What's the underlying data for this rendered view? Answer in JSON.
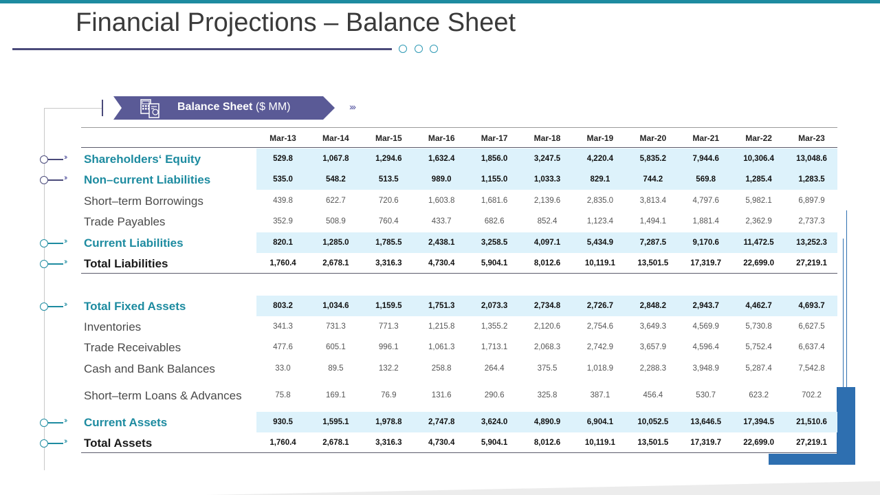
{
  "title": "Financial Projections – Balance Sheet",
  "banner": {
    "bold": "Balance Sheet",
    "rest": " ($ MM)",
    "icon": "calculator-document-icon"
  },
  "colors": {
    "accent": "#1d8ba0",
    "navy": "#5a5a96",
    "highlight_row": "#ddf2fb",
    "side_block": "#2e6fb0"
  },
  "columns": [
    "Mar-13",
    "Mar-14",
    "Mar-15",
    "Mar-16",
    "Mar-17",
    "Mar-18",
    "Mar-19",
    "Mar-20",
    "Mar-21",
    "Mar-22",
    "Mar-23"
  ],
  "rows": [
    {
      "label": "Shareholders‘ Equity",
      "style": "highlight",
      "values": [
        "529.8",
        "1,067.8",
        "1,294.6",
        "1,632.4",
        "1,856.0",
        "3,247.5",
        "4,220.4",
        "5,835.2",
        "7,944.6",
        "10,306.4",
        "13,048.6"
      ]
    },
    {
      "label": "Non–current Liabilities",
      "style": "highlight",
      "values": [
        "535.0",
        "548.2",
        "513.5",
        "989.0",
        "1,155.0",
        "1,033.3",
        "829.1",
        "744.2",
        "569.8",
        "1,285.4",
        "1,283.5"
      ]
    },
    {
      "label": "Short–term Borrowings",
      "style": "normal",
      "values": [
        "439.8",
        "622.7",
        "720.6",
        "1,603.8",
        "1,681.6",
        "2,139.6",
        "2,835.0",
        "3,813.4",
        "4,797.6",
        "5,982.1",
        "6,897.9"
      ]
    },
    {
      "label": "Trade Payables",
      "style": "normal",
      "values": [
        "352.9",
        "508.9",
        "760.4",
        "433.7",
        "682.6",
        "852.4",
        "1,123.4",
        "1,494.1",
        "1,881.4",
        "2,362.9",
        "2,737.3"
      ]
    },
    {
      "label": "Current Liabilities",
      "style": "highlight",
      "values": [
        "820.1",
        "1,285.0",
        "1,785.5",
        "2,438.1",
        "3,258.5",
        "4,097.1",
        "5,434.9",
        "7,287.5",
        "9,170.6",
        "11,472.5",
        "13,252.3"
      ]
    },
    {
      "label": "Total Liabilities",
      "style": "total",
      "values": [
        "1,760.4",
        "2,678.1",
        "3,316.3",
        "4,730.4",
        "5,904.1",
        "8,012.6",
        "10,119.1",
        "13,501.5",
        "17,319.7",
        "22,699.0",
        "27,219.1"
      ]
    },
    {
      "label": "Total Fixed Assets",
      "style": "highlight",
      "values": [
        "803.2",
        "1,034.6",
        "1,159.5",
        "1,751.3",
        "2,073.3",
        "2,734.8",
        "2,726.7",
        "2,848.2",
        "2,943.7",
        "4,462.7",
        "4,693.7"
      ]
    },
    {
      "label": "Inventories",
      "style": "normal",
      "values": [
        "341.3",
        "731.3",
        "771.3",
        "1,215.8",
        "1,355.2",
        "2,120.6",
        "2,754.6",
        "3,649.3",
        "4,569.9",
        "5,730.8",
        "6,627.5"
      ]
    },
    {
      "label": "Trade Receivables",
      "style": "normal",
      "values": [
        "477.6",
        "605.1",
        "996.1",
        "1,061.3",
        "1,713.1",
        "2,068.3",
        "2,742.9",
        "3,657.9",
        "4,596.4",
        "5,752.4",
        "6,637.4"
      ]
    },
    {
      "label": "Cash and Bank Balances",
      "style": "normal",
      "values": [
        "33.0",
        "89.5",
        "132.2",
        "258.8",
        "264.4",
        "375.5",
        "1,018.9",
        "2,288.3",
        "3,948.9",
        "5,287.4",
        "7,542.8"
      ]
    },
    {
      "label": "Short–term Loans & Advances",
      "style": "normal",
      "values": [
        "75.8",
        "169.1",
        "76.9",
        "131.6",
        "290.6",
        "325.8",
        "387.1",
        "456.4",
        "530.7",
        "623.2",
        "702.2"
      ]
    },
    {
      "label": "Current Assets",
      "style": "highlight",
      "values": [
        "930.5",
        "1,595.1",
        "1,978.8",
        "2,747.8",
        "3,624.0",
        "4,890.9",
        "6,904.1",
        "10,052.5",
        "13,646.5",
        "17,394.5",
        "21,510.6"
      ]
    },
    {
      "label": "Total Assets",
      "style": "total",
      "values": [
        "1,760.4",
        "2,678.1",
        "3,316.3",
        "4,730.4",
        "5,904.1",
        "8,012.6",
        "10,119.1",
        "13,501.5",
        "17,319.7",
        "22,699.0",
        "27,219.1"
      ]
    }
  ]
}
